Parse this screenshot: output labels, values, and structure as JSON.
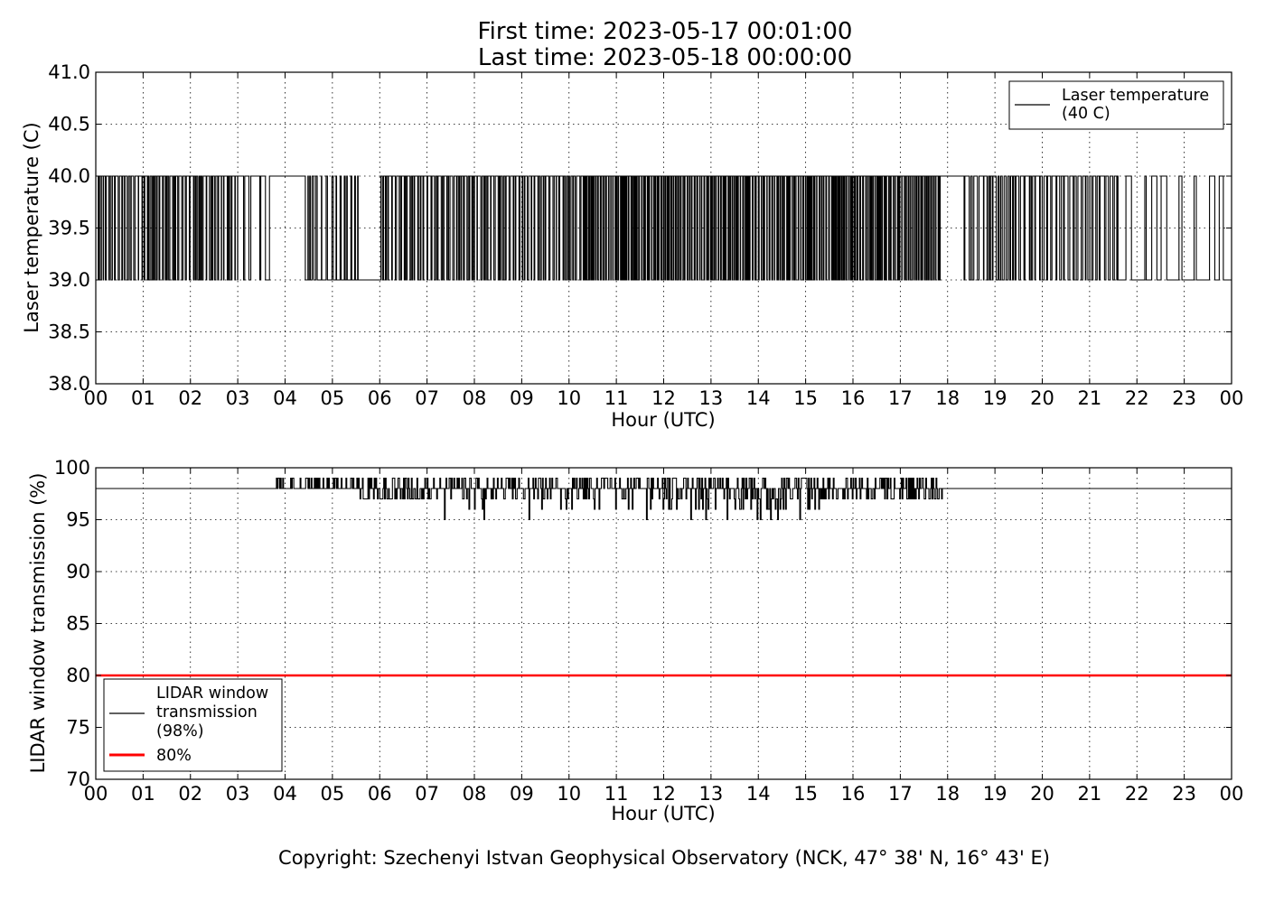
{
  "figure": {
    "title_line1": "First time: 2023-05-17 00:01:00",
    "title_line2": "Last time: 2023-05-18 00:00:00",
    "copyright": "Copyright: Szechenyi Istvan Geophysical Observatory (NCK, 47° 38' N, 16° 43' E)"
  },
  "chart_data": [
    {
      "type": "line",
      "xlabel": "Hour (UTC)",
      "ylabel": "Laser temperature (C)",
      "xlim": [
        0,
        24
      ],
      "ylim": [
        38.0,
        41.0
      ],
      "x_ticks": [
        "00",
        "01",
        "02",
        "03",
        "04",
        "05",
        "06",
        "07",
        "08",
        "09",
        "10",
        "11",
        "12",
        "13",
        "14",
        "15",
        "16",
        "17",
        "18",
        "19",
        "20",
        "21",
        "22",
        "23",
        "00"
      ],
      "y_ticks": [
        "38.0",
        "38.5",
        "39.0",
        "39.5",
        "40.0",
        "40.5",
        "41.0"
      ],
      "grid": true,
      "legend_position": "upper-right",
      "series": [
        {
          "name": "Laser temperature\n(40 C)",
          "legend_lines": [
            "Laser temperature",
            "(40 C)"
          ],
          "color": "#000000",
          "description": "values toggle between 39.0 and 40.0 C",
          "levels": [
            39.0,
            40.0
          ],
          "segments": [
            {
              "x0": 0.0,
              "x1": 3.0,
              "switch_interval_h": 0.03,
              "dominant": 40.0
            },
            {
              "x0": 3.0,
              "x1": 3.85,
              "switch_interval_h": 0.09,
              "dominant": 40.0
            },
            {
              "x0": 3.85,
              "x1": 4.4,
              "constant": 40.0
            },
            {
              "x0": 4.4,
              "x1": 5.55,
              "switch_interval_h": 0.04,
              "dominant": 39.0
            },
            {
              "x0": 5.55,
              "x1": 6.0,
              "constant": 39.0
            },
            {
              "x0": 6.0,
              "x1": 10.3,
              "switch_interval_h": 0.03,
              "dominant": 40.0
            },
            {
              "x0": 10.3,
              "x1": 17.85,
              "switch_interval_h": 0.02,
              "dominant": 40.0
            },
            {
              "x0": 17.85,
              "x1": 18.3,
              "constant": 40.0
            },
            {
              "x0": 18.3,
              "x1": 21.6,
              "switch_interval_h": 0.04,
              "dominant": 40.0
            },
            {
              "x0": 21.6,
              "x1": 24.0,
              "switch_interval_h": 0.13,
              "dominant": 39.0
            }
          ]
        }
      ]
    },
    {
      "type": "line",
      "xlabel": "Hour (UTC)",
      "ylabel": "LIDAR window transmission (%)",
      "xlim": [
        0,
        24
      ],
      "ylim": [
        70,
        100
      ],
      "x_ticks": [
        "00",
        "01",
        "02",
        "03",
        "04",
        "05",
        "06",
        "07",
        "08",
        "09",
        "10",
        "11",
        "12",
        "13",
        "14",
        "15",
        "16",
        "17",
        "18",
        "19",
        "20",
        "21",
        "22",
        "23",
        "00"
      ],
      "y_ticks": [
        "70",
        "75",
        "80",
        "85",
        "90",
        "95",
        "100"
      ],
      "grid": true,
      "legend_position": "lower-left",
      "series": [
        {
          "name": "LIDAR window\ntransmission\n(98%)",
          "legend_lines": [
            "LIDAR window",
            "transmission",
            "(98%)"
          ],
          "color": "#000000",
          "baseline": 98,
          "segments": [
            {
              "x0": 0.0,
              "x1": 3.8,
              "constant": 98
            },
            {
              "x0": 3.8,
              "x1": 5.5,
              "range": [
                98,
                99
              ]
            },
            {
              "x0": 5.5,
              "x1": 7.3,
              "range": [
                97,
                99
              ]
            },
            {
              "x0": 7.3,
              "x1": 10.3,
              "range": [
                95,
                99
              ]
            },
            {
              "x0": 10.3,
              "x1": 15.3,
              "range": [
                95,
                99
              ]
            },
            {
              "x0": 15.3,
              "x1": 17.9,
              "range": [
                97,
                99
              ]
            },
            {
              "x0": 17.9,
              "x1": 24.0,
              "constant": 98
            }
          ]
        },
        {
          "name": "80%",
          "legend_lines": [
            "80%"
          ],
          "color": "#ff0000",
          "constant": 80
        }
      ]
    }
  ]
}
